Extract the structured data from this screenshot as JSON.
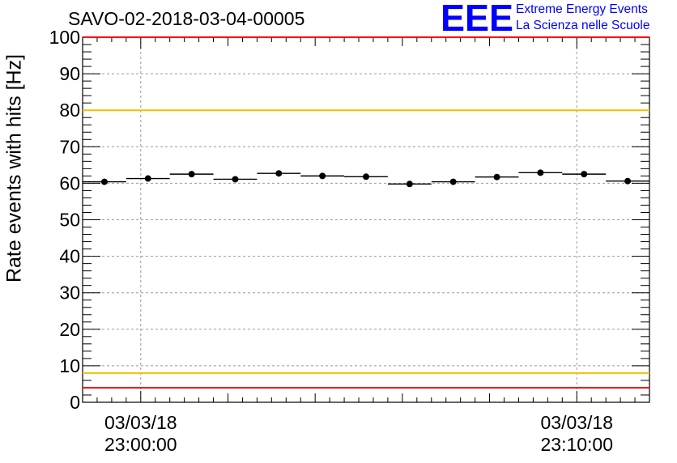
{
  "header": {
    "title": "SAVO-02-2018-03-04-00005",
    "logo_mark": "EEE",
    "logo_line1": "Extreme Energy Events",
    "logo_line2": "La Scienza nelle Scuole"
  },
  "colors": {
    "logo": "#0000ff",
    "red_line": "#ff0000",
    "yellow_line": "#f0c000",
    "markers": "#000000",
    "grid": "#999999"
  },
  "chart_data": {
    "type": "scatter",
    "title": "SAVO-02-2018-03-04-00005",
    "ylabel": "Rate events with hits [Hz]",
    "xlabel": "",
    "ylim": [
      0,
      100
    ],
    "yticks": [
      0,
      10,
      20,
      30,
      40,
      50,
      60,
      70,
      80,
      90,
      100
    ],
    "xlim": [
      "2018-03-03 22:58:40",
      "2018-03-03 23:11:40"
    ],
    "xticks": [
      {
        "time": "2018-03-03 23:00:00",
        "date_label": "03/03/18",
        "time_label": "23:00:00"
      },
      {
        "time": "2018-03-03 23:10:00",
        "date_label": "03/03/18",
        "time_label": "23:10:00"
      }
    ],
    "grid": true,
    "bin_width_minutes": 1,
    "series": [
      {
        "x": [
          "2018-03-03 22:59:10",
          "2018-03-03 23:00:10",
          "2018-03-03 23:01:10",
          "2018-03-03 23:02:10",
          "2018-03-03 23:03:10",
          "2018-03-03 23:04:10",
          "2018-03-03 23:05:10",
          "2018-03-03 23:06:10",
          "2018-03-03 23:07:10",
          "2018-03-03 23:08:10",
          "2018-03-03 23:09:10",
          "2018-03-03 23:10:10",
          "2018-03-03 23:11:10"
        ],
        "values": [
          60.4,
          61.3,
          62.5,
          61.1,
          62.7,
          62.0,
          61.8,
          59.8,
          60.4,
          61.7,
          62.9,
          62.5,
          60.6
        ]
      }
    ],
    "reference_lines": [
      {
        "y": 100,
        "color": "#ff0000"
      },
      {
        "y": 80,
        "color": "#f0c000"
      },
      {
        "y": 8,
        "color": "#f0c000"
      },
      {
        "y": 4,
        "color": "#ff0000"
      }
    ]
  }
}
